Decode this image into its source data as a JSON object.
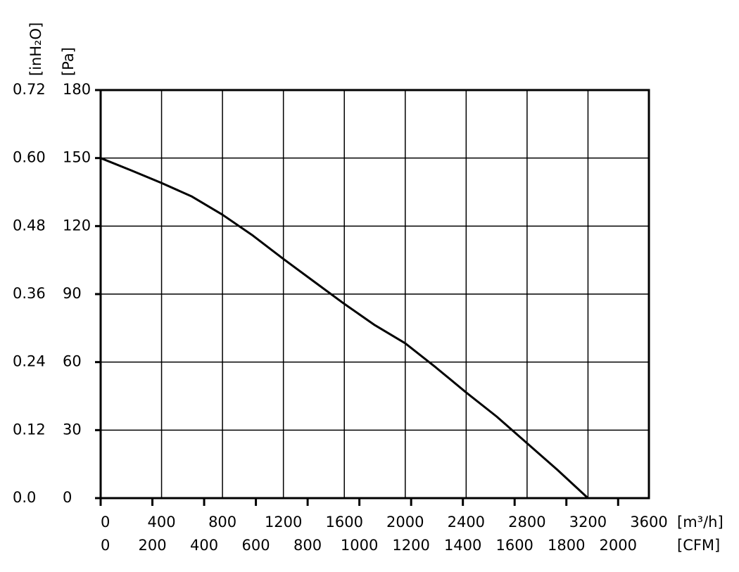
{
  "chart_data": {
    "type": "line",
    "x_label": "[m³/h]",
    "x2_label": "[CFM]",
    "y_label": "[Pa]",
    "y2_label": "[inH₂O]",
    "x": [
      0,
      200,
      400,
      600,
      800,
      1000,
      1200,
      1400,
      1600,
      1800,
      2000,
      2200,
      2400,
      2600,
      2800,
      3000,
      3200
    ],
    "values": [
      150,
      144.6,
      139,
      133,
      125,
      115.8,
      105.5,
      95.6,
      85.7,
      76.3,
      68.3,
      57.7,
      46.6,
      36,
      24.2,
      12.4,
      0
    ],
    "color": "#000000",
    "xlim": [
      0,
      3600
    ],
    "xticks": [
      0,
      400,
      800,
      1200,
      1600,
      2000,
      2400,
      2800,
      3200,
      3600
    ],
    "x2lim": [
      0,
      2119
    ],
    "x2ticks": [
      0,
      200,
      400,
      600,
      800,
      1000,
      1200,
      1400,
      1600,
      1800,
      2000
    ],
    "ylim": [
      0,
      180
    ],
    "yticks": [
      0,
      30,
      60,
      90,
      120,
      150,
      180
    ],
    "y2lim": [
      0,
      0.72
    ],
    "y2ticks": [
      {
        "value": 0,
        "label": "0.0"
      },
      0.12,
      0.24,
      0.36,
      0.48,
      {
        "value": 0.6,
        "label": "0.60"
      },
      0.72
    ],
    "grid": true
  }
}
